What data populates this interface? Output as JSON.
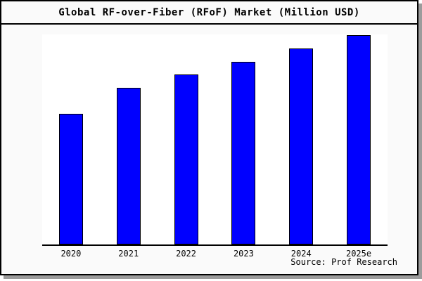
{
  "title": "Global RF-over-Fiber (RFoF) Market (Million USD)",
  "source_note": "Source: Prof Research",
  "colors": {
    "bar_fill": "#0000ff",
    "bar_border": "#000000",
    "card_background": "#fafafa",
    "plot_background": "#ffffff",
    "frame_border": "#000000",
    "drop_shadow": "#9c9c9c",
    "text": "#000000"
  },
  "chart_data": {
    "type": "bar",
    "title": "Global RF-over-Fiber (RFoF) Market (Million USD)",
    "categories": [
      "2020",
      "2021",
      "2022",
      "2023",
      "2024",
      "2025e"
    ],
    "values": [
      62.5,
      75,
      81.25,
      87.5,
      93.75,
      100
    ],
    "value_note": "y-axis unlabeled; values estimated from bar heights, normalized so 2025e = 100 (ratios 5 : 6 : 6.5 : 7 : 7.5 : 8)",
    "xlabel": "",
    "ylabel": "",
    "ylim": [
      0,
      100.5
    ],
    "grid": false,
    "legend": false,
    "annotations": [
      "Source: Prof Research"
    ],
    "bar_color": "#0000ff"
  }
}
